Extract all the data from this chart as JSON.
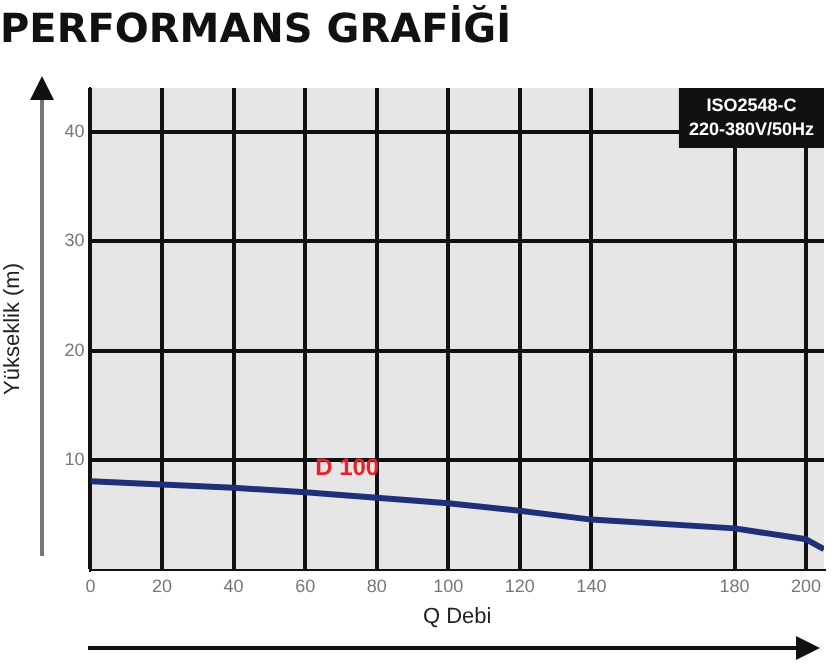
{
  "chart_data": {
    "type": "line",
    "title": "PERFORMANS GRAFİĞİ",
    "xlabel": "Q Debi",
    "ylabel": "Yükseklik (m)",
    "x": [
      0,
      20,
      40,
      60,
      80,
      100,
      120,
      140,
      180,
      200,
      205
    ],
    "series": [
      {
        "name": "D 100",
        "color": "#1f2f7a",
        "values": [
          8.1,
          7.8,
          7.5,
          7.1,
          6.6,
          6.1,
          5.4,
          4.6,
          3.8,
          2.8,
          1.9
        ]
      }
    ],
    "xlim": [
      0,
      205
    ],
    "xticks": [
      0,
      20,
      40,
      60,
      80,
      100,
      120,
      140,
      180,
      200
    ],
    "ylim": [
      0,
      44
    ],
    "yticks": [
      10,
      20,
      30,
      40
    ],
    "grid": true,
    "legend": false,
    "marker": "none",
    "line_style": "solid",
    "annotations": [
      "ISO2548-C",
      "220-380V/50Hz"
    ]
  }
}
